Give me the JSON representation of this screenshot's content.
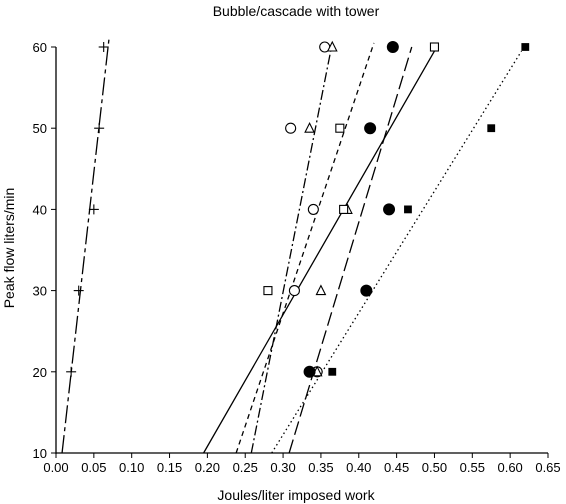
{
  "chart_data": {
    "type": "scatter",
    "title": "Bubble/cascade with tower",
    "xlabel": "Joules/liter imposed work",
    "ylabel": "Peak flow liters/min",
    "xlim": [
      0,
      0.65
    ],
    "ylim": [
      10,
      60
    ],
    "xticks": [
      "0.00",
      "0.05",
      "0.10",
      "0.15",
      "0.20",
      "0.25",
      "0.30",
      "0.35",
      "0.40",
      "0.45",
      "0.50",
      "0.55",
      "0.60",
      "0.65"
    ],
    "yticks": [
      "10",
      "20",
      "30",
      "40",
      "50",
      "60"
    ],
    "grid": false,
    "legend": "none",
    "series": [
      {
        "marker": "plus",
        "line": "longdash",
        "points": [
          [
            0.02,
            20
          ],
          [
            0.03,
            30
          ],
          [
            0.05,
            40
          ],
          [
            0.057,
            50
          ],
          [
            0.063,
            60
          ]
        ],
        "fit": [
          [
            0.008,
            10
          ],
          [
            0.07,
            61
          ]
        ]
      },
      {
        "marker": "open-circle",
        "line": "dashdot",
        "points": [
          [
            0.345,
            20
          ],
          [
            0.315,
            30
          ],
          [
            0.34,
            40
          ],
          [
            0.31,
            50
          ],
          [
            0.355,
            60
          ]
        ],
        "fit": [
          [
            0.258,
            10
          ],
          [
            0.365,
            60.5
          ]
        ]
      },
      {
        "marker": "open-triangle",
        "line": "shortdash",
        "points": [
          [
            0.345,
            20
          ],
          [
            0.35,
            30
          ],
          [
            0.385,
            40
          ],
          [
            0.335,
            50
          ],
          [
            0.365,
            60
          ]
        ],
        "fit": [
          [
            0.238,
            10
          ],
          [
            0.42,
            60.5
          ]
        ]
      },
      {
        "marker": "open-square",
        "line": "solid",
        "points": [
          [
            0.28,
            30
          ],
          [
            0.38,
            40
          ],
          [
            0.375,
            50
          ],
          [
            0.5,
            60
          ]
        ],
        "fit": [
          [
            0.195,
            10
          ],
          [
            0.5,
            59.5
          ]
        ]
      },
      {
        "marker": "filled-circle",
        "line": "mediumdash",
        "points": [
          [
            0.335,
            20
          ],
          [
            0.41,
            30
          ],
          [
            0.44,
            40
          ],
          [
            0.415,
            50
          ],
          [
            0.445,
            60
          ]
        ],
        "fit": [
          [
            0.308,
            10
          ],
          [
            0.47,
            60
          ]
        ]
      },
      {
        "marker": "filled-square",
        "line": "dotted",
        "points": [
          [
            0.365,
            20
          ],
          [
            0.465,
            40
          ],
          [
            0.575,
            50
          ],
          [
            0.62,
            60
          ]
        ],
        "fit": [
          [
            0.285,
            10
          ],
          [
            0.615,
            59.5
          ]
        ]
      }
    ]
  }
}
